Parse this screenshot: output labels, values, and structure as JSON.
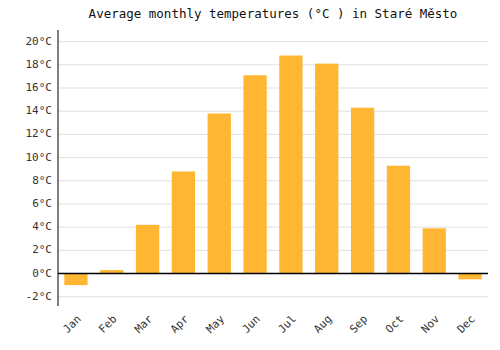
{
  "chart_data": {
    "type": "bar",
    "title": "Average monthly temperatures (°C ) in Staré Město",
    "categories": [
      "Jan",
      "Feb",
      "Mar",
      "Apr",
      "May",
      "Jun",
      "Jul",
      "Aug",
      "Sep",
      "Oct",
      "Nov",
      "Dec"
    ],
    "values": [
      -1.0,
      0.3,
      4.2,
      8.8,
      13.8,
      17.1,
      18.8,
      18.1,
      14.3,
      9.3,
      3.9,
      -0.5
    ],
    "color": "#FFB733",
    "ylim": [
      -2.8,
      21.0
    ],
    "yticks": [
      {
        "value": -2,
        "label": "-2°C"
      },
      {
        "value": 0,
        "label": "0°C"
      },
      {
        "value": 2,
        "label": "2°C"
      },
      {
        "value": 4,
        "label": "4°C"
      },
      {
        "value": 6,
        "label": "6°C"
      },
      {
        "value": 8,
        "label": "8°C"
      },
      {
        "value": 10,
        "label": "10°C"
      },
      {
        "value": 12,
        "label": "12°C"
      },
      {
        "value": 14,
        "label": "14°C"
      },
      {
        "value": 16,
        "label": "16°C"
      },
      {
        "value": 18,
        "label": "18°C"
      },
      {
        "value": 20,
        "label": "20°C"
      }
    ],
    "grid": true
  }
}
